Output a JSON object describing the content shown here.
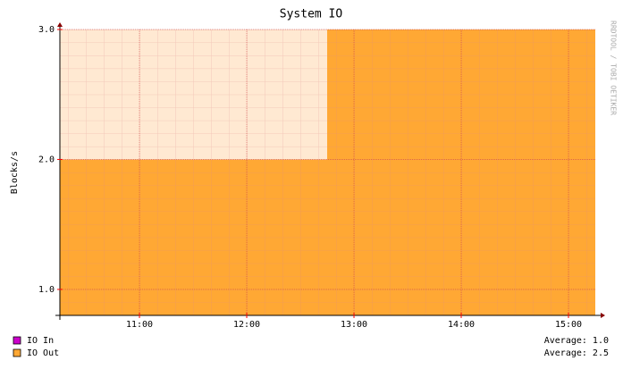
{
  "chart_data": {
    "type": "area",
    "title": "System IO",
    "y_label": "Blocks/s",
    "watermark": "RRDTOOL / TOBI OETIKER",
    "xlim": [
      10.258,
      15.25
    ],
    "xticks": [
      {
        "value": 11,
        "label": "11:00"
      },
      {
        "value": 12,
        "label": "12:00"
      },
      {
        "value": 13,
        "label": "13:00"
      },
      {
        "value": 14,
        "label": "14:00"
      },
      {
        "value": 15,
        "label": "15:00"
      }
    ],
    "ylim": [
      0.8,
      3.0
    ],
    "yticks": [
      {
        "value": 1,
        "label": "1.0"
      },
      {
        "value": 2,
        "label": "2.0"
      },
      {
        "value": 3,
        "label": "3.0"
      }
    ],
    "grid": true,
    "series": [
      {
        "name": "IO In",
        "color": "#cc00cc",
        "average": "Average: 1.0"
      },
      {
        "name": "IO Out",
        "color": "#ffa834",
        "average": "Average: 2.5",
        "x": [
          10.258,
          12.75,
          12.75,
          15.25
        ],
        "values": [
          2,
          2,
          3,
          3
        ]
      }
    ]
  }
}
